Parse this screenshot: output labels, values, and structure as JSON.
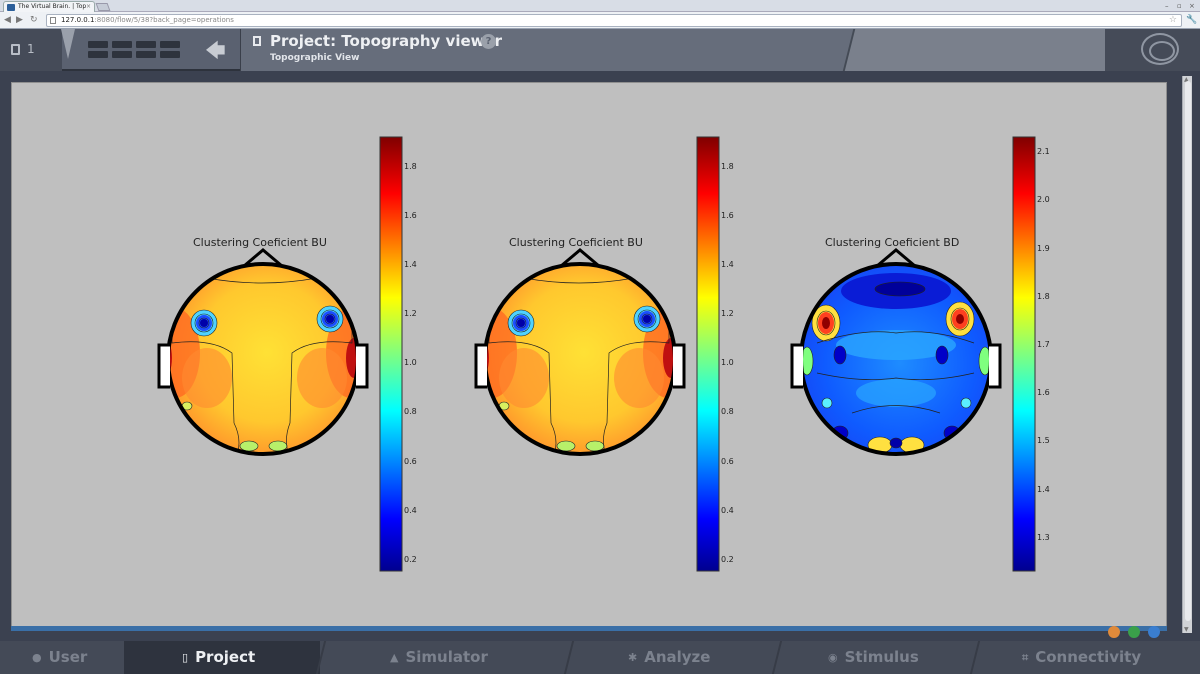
{
  "browser": {
    "tab_title": "The Virtual Brain. | Top",
    "tab_close": "×",
    "url_host": "127.0.0.1",
    "url_rest": ":8080/flow/5/38?back_page=operations"
  },
  "header": {
    "operation_count": "1",
    "page_title": "Project: Topography viewer",
    "page_subtitle": "Topographic View",
    "help": "?"
  },
  "footer": {
    "tabs": [
      {
        "label": "User",
        "icon": "user-icon"
      },
      {
        "label": "Project",
        "icon": "document-icon",
        "active": true
      },
      {
        "label": "Simulator",
        "icon": "simulator-icon"
      },
      {
        "label": "Analyze",
        "icon": "gear-icon"
      },
      {
        "label": "Stimulus",
        "icon": "pin-icon"
      },
      {
        "label": "Connectivity",
        "icon": "network-icon"
      }
    ]
  },
  "colors": {
    "accent": "#3a6fa7",
    "background": "#bfbfbf"
  },
  "plots": [
    {
      "title": "Clustering Coeficient BU",
      "colorbar_min": 0.15,
      "colorbar_max": 1.93,
      "colorbar_ticks": [
        "1.8",
        "1.6",
        "1.4",
        "1.2",
        "1.0",
        "0.8",
        "0.6",
        "0.4",
        "0.2"
      ],
      "colormap": "jet",
      "dominant_value_color": "yellow-orange"
    },
    {
      "title": "Clustering Coeficient BU",
      "colorbar_min": 0.15,
      "colorbar_max": 1.93,
      "colorbar_ticks": [
        "1.8",
        "1.6",
        "1.4",
        "1.2",
        "1.0",
        "0.8",
        "0.6",
        "0.4",
        "0.2"
      ],
      "colormap": "jet",
      "dominant_value_color": "yellow-orange"
    },
    {
      "title": "Clustering Coeficient BD",
      "colorbar_min": 1.23,
      "colorbar_max": 2.14,
      "colorbar_ticks": [
        "2.1",
        "2.0",
        "1.9",
        "1.8",
        "1.7",
        "1.6",
        "1.5",
        "1.4",
        "1.3"
      ],
      "colormap": "jet",
      "dominant_value_color": "blue"
    }
  ]
}
